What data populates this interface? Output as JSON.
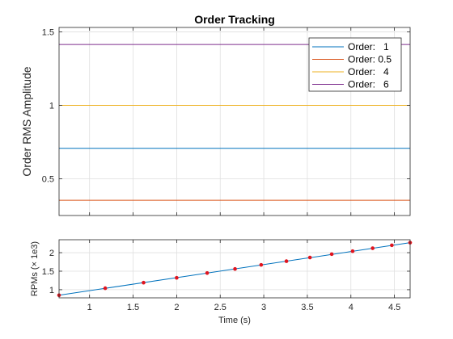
{
  "chart_data": [
    {
      "type": "line",
      "title": "Order Tracking",
      "xlabel": "",
      "ylabel": "Order RMS Amplitude",
      "xlim": [
        0.65,
        4.68
      ],
      "ylim": [
        0.25,
        1.53
      ],
      "xticks": [
        1,
        1.5,
        2,
        2.5,
        3,
        3.5,
        4,
        4.5
      ],
      "xtick_labels": [
        "",
        "",
        "",
        "",
        "",
        "",
        "",
        ""
      ],
      "yticks": [
        0.5,
        1,
        1.5
      ],
      "ytick_labels": [
        "0.5",
        "1",
        "1.5"
      ],
      "grid": true,
      "legend_position": "top-right",
      "series": [
        {
          "name": "Order:   1",
          "color": "#0072bd",
          "x": [
            0.65,
            4.68
          ],
          "values": [
            0.707,
            0.707
          ]
        },
        {
          "name": "Order: 0.5",
          "color": "#d95319",
          "x": [
            0.65,
            4.68
          ],
          "values": [
            0.354,
            0.354
          ]
        },
        {
          "name": "Order:   4",
          "color": "#edb120",
          "x": [
            0.65,
            4.68
          ],
          "values": [
            1.0,
            1.0
          ]
        },
        {
          "name": "Order:   6",
          "color": "#7e2f8e",
          "x": [
            0.65,
            4.68
          ],
          "values": [
            1.414,
            1.414
          ]
        }
      ]
    },
    {
      "type": "line",
      "title": "",
      "xlabel": "Time (s)",
      "ylabel": "RPMs (× 1e3)",
      "xlim": [
        0.65,
        4.68
      ],
      "ylim": [
        0.78,
        2.35
      ],
      "xticks": [
        1,
        1.5,
        2,
        2.5,
        3,
        3.5,
        4,
        4.5
      ],
      "xtick_labels": [
        "1",
        "1.5",
        "2",
        "2.5",
        "3",
        "3.5",
        "4",
        "4.5"
      ],
      "yticks": [
        1,
        1.5,
        2
      ],
      "ytick_labels": [
        "1",
        "1.5",
        "2"
      ],
      "grid": true,
      "series": [
        {
          "color": "#0072bd",
          "x": [
            0.65,
            4.68
          ],
          "values": [
            0.85,
            2.27
          ]
        }
      ],
      "markers": {
        "color": "#e0141e",
        "x": [
          0.65,
          1.18,
          1.62,
          2.0,
          2.35,
          2.67,
          2.97,
          3.26,
          3.53,
          3.78,
          4.02,
          4.25,
          4.47,
          4.68
        ],
        "values": [
          0.85,
          1.04,
          1.19,
          1.32,
          1.45,
          1.56,
          1.67,
          1.77,
          1.87,
          1.96,
          2.04,
          2.12,
          2.2,
          2.27
        ]
      }
    }
  ]
}
